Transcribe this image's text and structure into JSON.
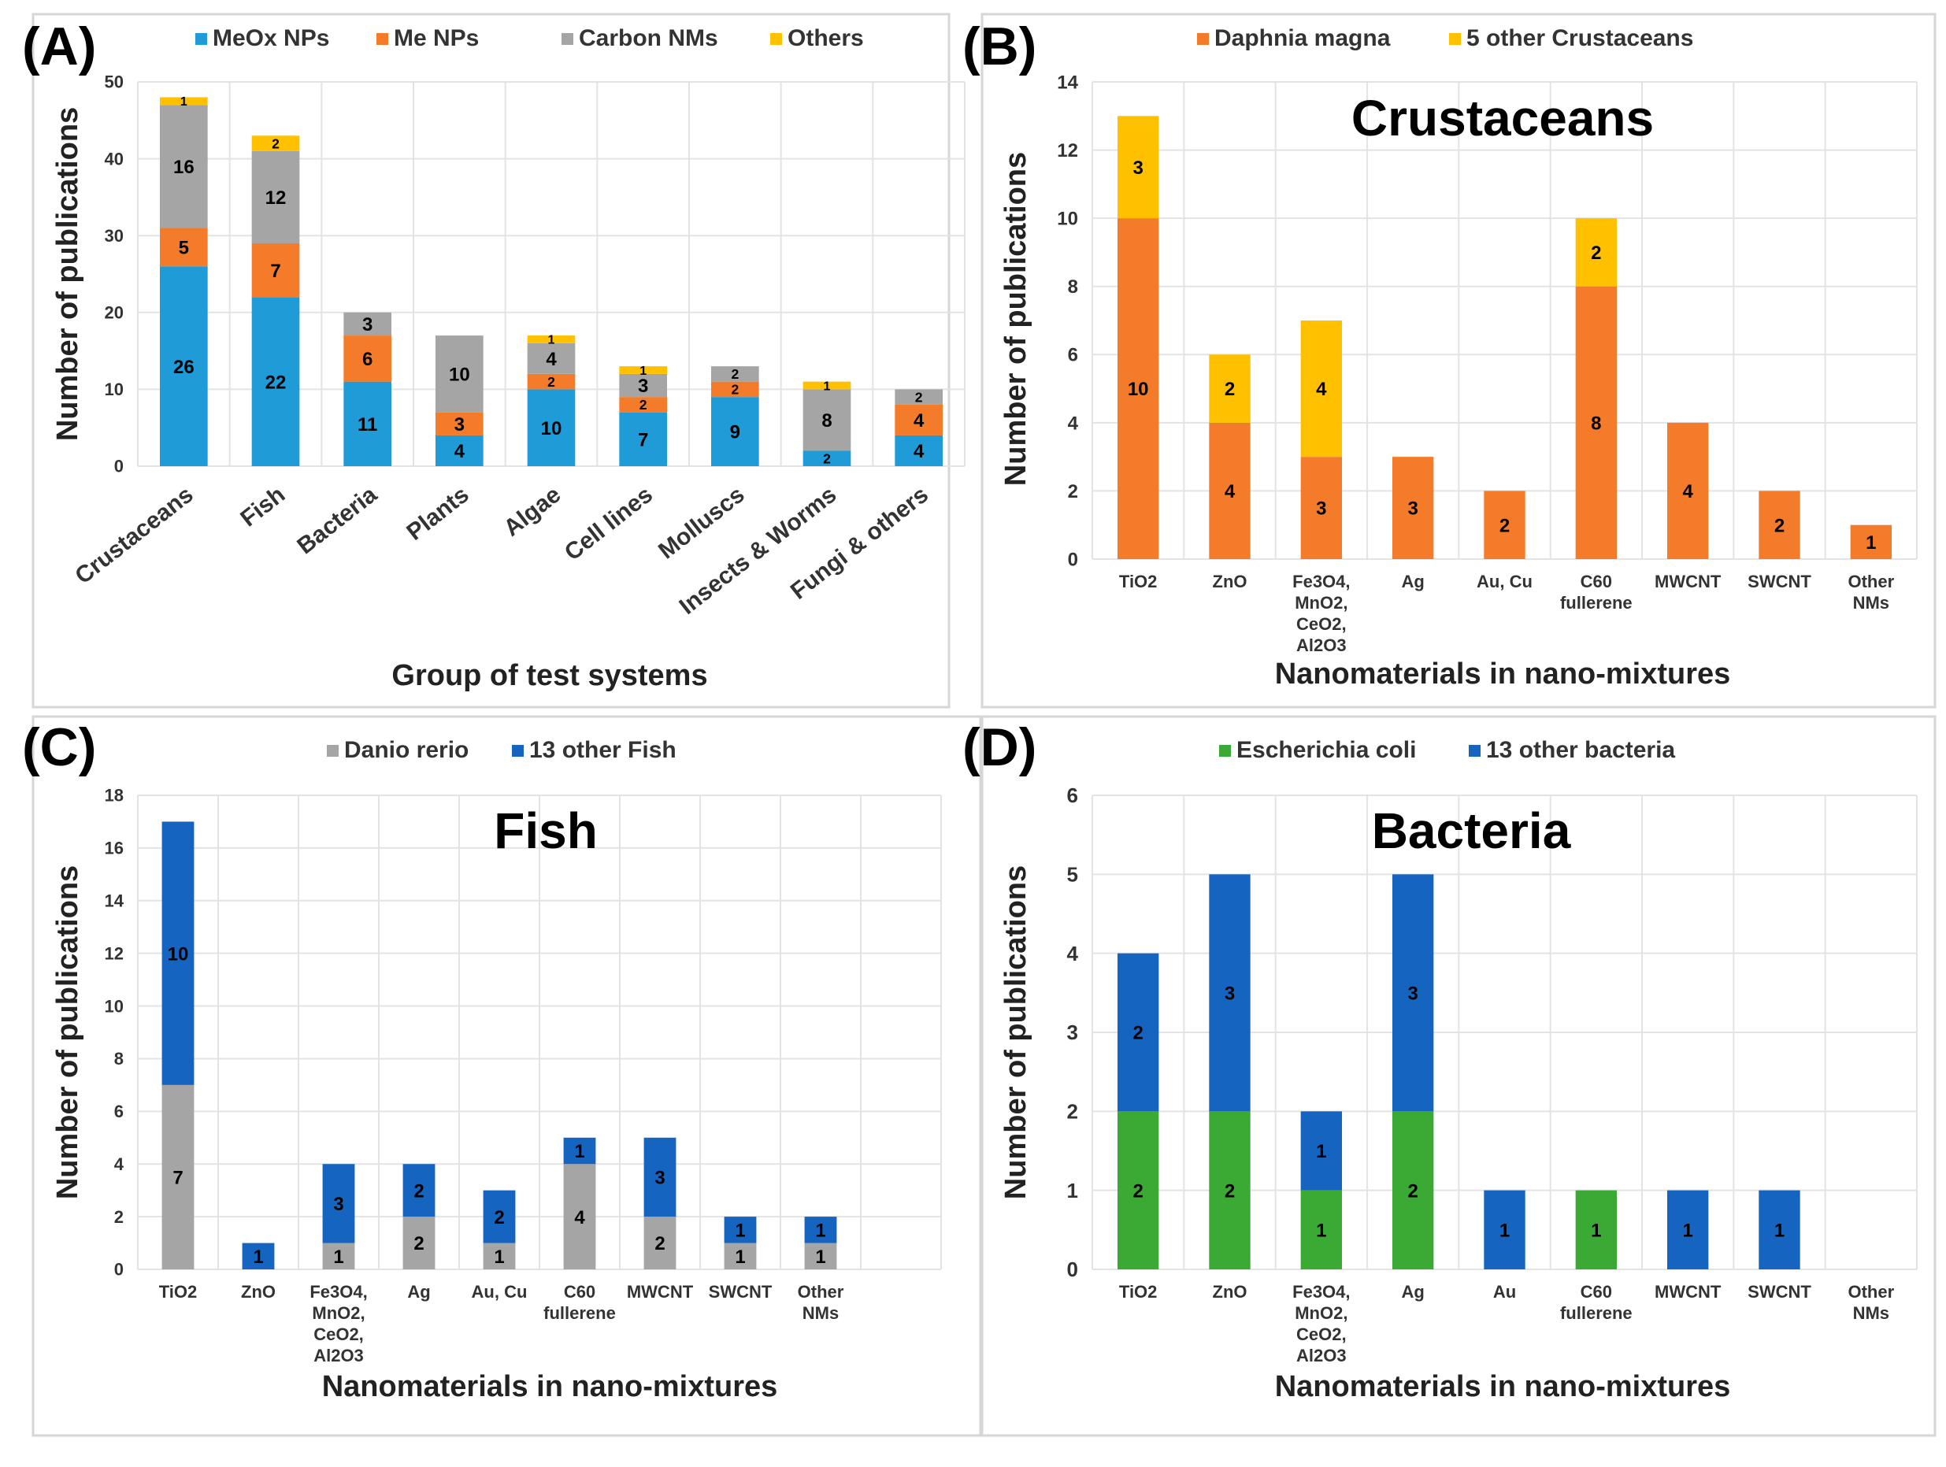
{
  "chart_data": [
    {
      "panel": "(A)",
      "type": "bar",
      "stacked": true,
      "title": "",
      "xlabel": "Group of test systems",
      "ylabel": "Number of publications",
      "ylim": [
        0,
        50
      ],
      "yticks": [
        "0",
        "10",
        "20",
        "30",
        "40",
        "50"
      ],
      "categories": [
        "Crustaceans",
        "Fish",
        "Bacteria",
        "Plants",
        "Algae",
        "Cell lines",
        "Molluscs",
        "Insects & Worms",
        "Fungi & others"
      ],
      "series": [
        {
          "name": "MeOx NPs",
          "color": "#1F9BD7",
          "values": [
            26,
            22,
            11,
            4,
            10,
            7,
            9,
            2,
            4
          ]
        },
        {
          "name": "Me NPs",
          "color": "#F47B2A",
          "values": [
            5,
            7,
            6,
            3,
            2,
            2,
            2,
            0,
            4
          ]
        },
        {
          "name": "Carbon NMs",
          "color": "#A5A5A5",
          "values": [
            16,
            12,
            3,
            10,
            4,
            3,
            2,
            8,
            2
          ]
        },
        {
          "name": "Others",
          "color": "#FFC000",
          "values": [
            1,
            2,
            0,
            0,
            1,
            1,
            0,
            1,
            0
          ]
        }
      ]
    },
    {
      "panel": "(B)",
      "type": "bar",
      "stacked": true,
      "title": "Crustaceans",
      "xlabel": "Nanomaterials in nano-mixtures",
      "ylabel": "Number of publications",
      "ylim": [
        0,
        14
      ],
      "yticks": [
        "0",
        "2",
        "4",
        "6",
        "8",
        "10",
        "12",
        "14"
      ],
      "categories": [
        [
          "TiO2"
        ],
        [
          "ZnO"
        ],
        [
          "Fe3O4,",
          "MnO2,",
          "CeO2,",
          "Al2O3"
        ],
        [
          "Ag"
        ],
        [
          "Au, Cu"
        ],
        [
          "C60",
          "fullerene"
        ],
        [
          "MWCNT"
        ],
        [
          "SWCNT"
        ],
        [
          "Other",
          "NMs"
        ]
      ],
      "series": [
        {
          "name": "Daphnia magna",
          "color": "#F47B2A",
          "values": [
            10,
            4,
            3,
            3,
            2,
            8,
            4,
            2,
            1
          ]
        },
        {
          "name": "5 other Crustaceans",
          "color": "#FFC000",
          "values": [
            3,
            2,
            4,
            0,
            0,
            2,
            0,
            0,
            0
          ]
        }
      ]
    },
    {
      "panel": "(C)",
      "type": "bar",
      "stacked": true,
      "title": "Fish",
      "xlabel": "Nanomaterials in nano-mixtures",
      "ylabel": "Number of publications",
      "ylim": [
        0,
        18
      ],
      "yticks": [
        "0",
        "2",
        "4",
        "6",
        "8",
        "10",
        "12",
        "14",
        "16",
        "18"
      ],
      "categories": [
        [
          "TiO2"
        ],
        [
          "ZnO"
        ],
        [
          "Fe3O4,",
          "MnO2,",
          "CeO2,",
          "Al2O3"
        ],
        [
          "Ag"
        ],
        [
          "Au, Cu"
        ],
        [
          "C60",
          "fullerene"
        ],
        [
          "MWCNT"
        ],
        [
          "SWCNT"
        ],
        [
          "Other",
          "NMs"
        ],
        [
          ""
        ]
      ],
      "series": [
        {
          "name": "Danio rerio",
          "color": "#A5A5A5",
          "values": [
            7,
            0,
            1,
            2,
            1,
            4,
            2,
            1,
            1,
            0
          ]
        },
        {
          "name": "13 other Fish",
          "color": "#1565C0",
          "values": [
            10,
            1,
            3,
            2,
            2,
            1,
            3,
            1,
            1,
            0
          ]
        }
      ]
    },
    {
      "panel": "(D)",
      "type": "bar",
      "stacked": true,
      "title": "Bacteria",
      "xlabel": "Nanomaterials in nano-mixtures",
      "ylabel": "Number of publications",
      "ylim": [
        0,
        6
      ],
      "yticks": [
        "0",
        "1",
        "2",
        "3",
        "4",
        "5",
        "6"
      ],
      "categories": [
        [
          "TiO2"
        ],
        [
          "ZnO"
        ],
        [
          "Fe3O4,",
          "MnO2,",
          "CeO2,",
          "Al2O3"
        ],
        [
          "Ag"
        ],
        [
          "Au"
        ],
        [
          "C60",
          "fullerene"
        ],
        [
          "MWCNT"
        ],
        [
          "SWCNT"
        ],
        [
          "Other",
          "NMs"
        ]
      ],
      "series": [
        {
          "name": "Escherichia coli",
          "color": "#3BAA35",
          "values": [
            2,
            2,
            1,
            2,
            0,
            1,
            0,
            0,
            0
          ]
        },
        {
          "name": "13 other bacteria",
          "color": "#1565C0",
          "values": [
            2,
            3,
            1,
            3,
            1,
            0,
            1,
            1,
            0
          ]
        }
      ]
    }
  ]
}
